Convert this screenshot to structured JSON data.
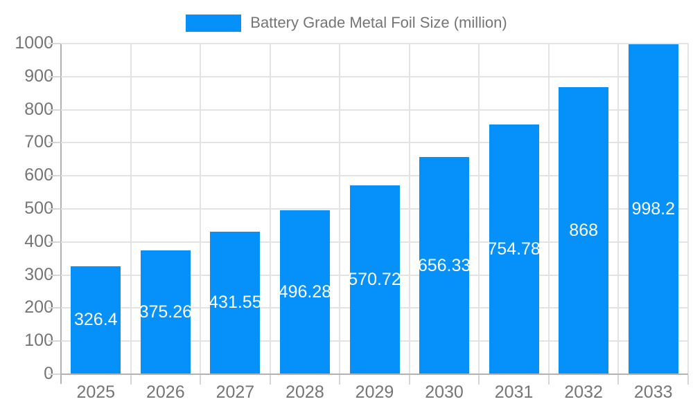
{
  "legend": {
    "label": "Battery Grade Metal Foil Size (million)",
    "swatch_color": "#0691fa"
  },
  "colors": {
    "bar": "#0691fa",
    "bar_label": "#ffffff",
    "axis_label": "#757575",
    "grid": "#e3e3e3",
    "axis_line": "#b3b3b3",
    "tick": "#d6d6d6",
    "background": "#ffffff"
  },
  "chart_data": {
    "type": "bar",
    "title": "Battery Grade Metal Foil Size (million)",
    "categories": [
      "2025",
      "2026",
      "2027",
      "2028",
      "2029",
      "2030",
      "2031",
      "2032",
      "2033"
    ],
    "values": [
      326.4,
      375.26,
      431.55,
      496.28,
      570.72,
      656.33,
      754.78,
      868,
      998.2
    ],
    "value_labels": [
      "326.4",
      "375.26",
      "431.55",
      "496.28",
      "570.72",
      "656.33",
      "754.78",
      "868",
      "998.2"
    ],
    "xlabel": "",
    "ylabel": "",
    "ylim": [
      0,
      1000
    ],
    "ytick_step": 100,
    "ytick_labels": [
      "0",
      "100",
      "200",
      "300",
      "400",
      "500",
      "600",
      "700",
      "800",
      "900",
      "1000"
    ],
    "grid": true,
    "legend_position": "top-center",
    "bar_label_position": "center-inside"
  }
}
